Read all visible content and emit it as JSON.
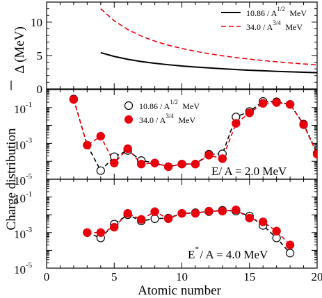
{
  "chart_data": [
    {
      "type": "line",
      "ylabel": "Δ (MeV)",
      "ylim": [
        0,
        13
      ],
      "y_ticks": [
        0,
        5,
        10
      ],
      "y_tick_labels": [
        "0",
        "5",
        "10"
      ],
      "legend_placement": "top-right",
      "series": [
        {
          "name": "10.86 / A^1/2 MeV",
          "legend_main": "10.86 / A",
          "legend_sup": "1/2",
          "legend_tail": " MeV",
          "color": "#000000",
          "dash": "solid",
          "x": [
            4,
            5,
            6,
            7,
            8,
            9,
            10,
            11,
            12,
            13,
            14,
            15,
            16,
            17,
            18,
            19,
            20
          ],
          "values": [
            5.43,
            4.86,
            4.43,
            4.1,
            3.84,
            3.62,
            3.43,
            3.28,
            3.14,
            3.01,
            2.9,
            2.8,
            2.72,
            2.63,
            2.56,
            2.49,
            2.43
          ]
        },
        {
          "name": "34.0 / A^3/4 MeV",
          "legend_main": "34.0  / A",
          "legend_sup": "3/4",
          "legend_tail": " MeV",
          "color": "#e8000b",
          "dash": "dashed",
          "x": [
            4,
            5,
            6,
            7,
            8,
            9,
            10,
            11,
            12,
            13,
            14,
            15,
            16,
            17,
            18,
            19,
            20
          ],
          "values": [
            12.0,
            10.2,
            8.89,
            7.91,
            7.15,
            6.54,
            6.05,
            5.63,
            5.27,
            4.96,
            4.69,
            4.46,
            4.25,
            4.06,
            3.89,
            3.74,
            3.6
          ]
        }
      ]
    },
    {
      "type": "line",
      "ylabel": "Charge distribution",
      "yscale": "log",
      "ylim": [
        1e-05,
        1
      ],
      "y_ticks": [
        1e-05,
        0.001,
        0.1
      ],
      "y_tick_labels": [
        "10^-5",
        "10^-3",
        "10^-1"
      ],
      "annotation": "E* / A = 2.0 MeV",
      "annotation_main": "E",
      "annotation_tail": "  / A = 2.0 MeV",
      "legend_placement": "upper-center",
      "series": [
        {
          "name": "10.86 / A^1/2 MeV",
          "legend_main": "10.86 / A",
          "legend_sup": "1/2",
          "legend_tail": " MeV",
          "marker": "open-circle",
          "color": "#000000",
          "x": [
            2,
            3,
            4,
            5,
            6,
            7,
            8,
            9,
            10,
            11,
            12,
            13,
            14,
            15,
            16,
            17,
            18,
            19,
            20
          ],
          "values": [
            0.3,
            0.0008,
            3e-05,
            0.00018,
            0.0004,
            0.00011,
            8e-05,
            5e-05,
            7e-05,
            7e-05,
            0.00025,
            0.00026,
            0.03,
            0.06,
            0.22,
            0.21,
            0.15,
            0.012,
            0.00028
          ]
        },
        {
          "name": "34.0 / A^3/4 MeV",
          "legend_main": "34.0  / A",
          "legend_sup": "3/4",
          "legend_tail": " MeV",
          "marker": "filled-circle",
          "color": "#e8000b",
          "x": [
            2,
            3,
            4,
            5,
            6,
            7,
            8,
            9,
            10,
            11,
            12,
            13,
            14,
            15,
            16,
            17,
            18,
            19,
            20
          ],
          "values": [
            0.28,
            0.0008,
            0.0025,
            8e-05,
            0.0005,
            7e-05,
            8e-05,
            5e-05,
            7e-05,
            7e-05,
            0.00022,
            0.00014,
            0.013,
            0.05,
            0.17,
            0.19,
            0.15,
            0.011,
            0.00025
          ]
        }
      ]
    },
    {
      "type": "line",
      "xlabel": "Atomic number",
      "yscale": "log",
      "xlim": [
        0,
        20
      ],
      "x_ticks": [
        0,
        5,
        10,
        15,
        20
      ],
      "x_tick_labels": [
        "0",
        "5",
        "10",
        "15",
        "20"
      ],
      "ylim": [
        1e-05,
        1
      ],
      "y_ticks": [
        1e-05,
        0.001,
        0.1
      ],
      "y_tick_labels": [
        "10^-5",
        "10^-3",
        "10^-1"
      ],
      "annotation": "E* / A = 4.0 MeV",
      "annotation_main": "E",
      "annotation_sup": "*",
      "annotation_tail": " / A = 4.0 MeV",
      "series": [
        {
          "name": "10.86 / A^1/2 MeV",
          "marker": "open-circle",
          "color": "#000000",
          "x": [
            3,
            4,
            5,
            6,
            7,
            8,
            9,
            10,
            11,
            12,
            13,
            14,
            15,
            16,
            17,
            18
          ],
          "values": [
            0.001,
            0.0005,
            0.003,
            0.01,
            0.0045,
            0.006,
            0.0065,
            0.012,
            0.013,
            0.015,
            0.018,
            0.016,
            0.0085,
            0.0025,
            0.0005,
            7e-05
          ]
        },
        {
          "name": "34.0 / A^3/4 MeV",
          "marker": "filled-circle",
          "color": "#e8000b",
          "x": [
            3,
            4,
            5,
            6,
            7,
            8,
            9,
            10,
            11,
            12,
            13,
            14,
            15,
            16,
            17,
            18
          ],
          "values": [
            0.001,
            0.001,
            0.002,
            0.012,
            0.0055,
            0.015,
            0.006,
            0.012,
            0.012,
            0.016,
            0.016,
            0.019,
            0.0065,
            0.004,
            0.0012,
            0.0002
          ]
        }
      ]
    }
  ]
}
